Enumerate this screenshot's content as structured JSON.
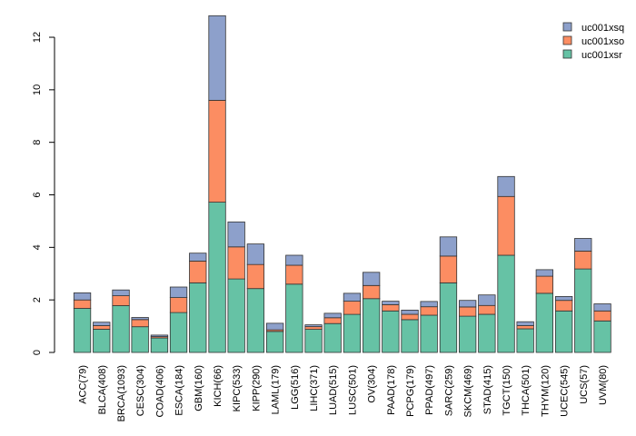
{
  "chart_data": {
    "type": "bar",
    "stacked": true,
    "title": "",
    "xlabel": "",
    "ylabel": "",
    "ylim": [
      0,
      12.9
    ],
    "yticks": [
      0,
      2,
      4,
      6,
      8,
      10,
      12
    ],
    "legend_position": "top-right",
    "categories": [
      "ACC(79)",
      "BLCA(408)",
      "BRCA(1093)",
      "CESC(304)",
      "COAD(406)",
      "ESCA(184)",
      "GBM(160)",
      "KICH(66)",
      "KIPC(533)",
      "KIPP(290)",
      "LAML(179)",
      "LGG(516)",
      "LIHC(371)",
      "LUAD(515)",
      "LUSC(501)",
      "OV(304)",
      "PAAD(178)",
      "PCPG(179)",
      "PPAD(497)",
      "SARC(259)",
      "SKCM(469)",
      "STAD(415)",
      "TGCT(150)",
      "THCA(501)",
      "THYM(120)",
      "UCEC(545)",
      "UCS(57)",
      "UVM(80)"
    ],
    "series": [
      {
        "name": "uc001xsr",
        "color": "#66c2a5",
        "values": [
          1.68,
          0.88,
          1.78,
          0.98,
          0.55,
          1.52,
          2.65,
          5.72,
          2.8,
          2.43,
          0.8,
          2.6,
          0.88,
          1.1,
          1.45,
          2.05,
          1.58,
          1.25,
          1.42,
          2.65,
          1.38,
          1.45,
          3.7,
          0.9,
          2.25,
          1.58,
          3.18,
          1.2
        ]
      },
      {
        "name": "uc001xso",
        "color": "#fc8d62",
        "values": [
          0.32,
          0.14,
          0.38,
          0.27,
          0.05,
          0.57,
          0.83,
          3.88,
          1.22,
          0.92,
          0.06,
          0.72,
          0.1,
          0.22,
          0.5,
          0.5,
          0.24,
          0.2,
          0.32,
          1.02,
          0.35,
          0.34,
          2.24,
          0.12,
          0.65,
          0.4,
          0.68,
          0.38
        ]
      },
      {
        "name": "uc001xsq",
        "color": "#8da0cb",
        "values": [
          0.27,
          0.13,
          0.22,
          0.08,
          0.06,
          0.4,
          0.3,
          3.22,
          0.95,
          0.78,
          0.25,
          0.38,
          0.07,
          0.17,
          0.3,
          0.5,
          0.13,
          0.16,
          0.2,
          0.73,
          0.25,
          0.4,
          0.76,
          0.15,
          0.25,
          0.15,
          0.48,
          0.27
        ]
      }
    ],
    "legend_order": [
      "uc001xsq",
      "uc001xso",
      "uc001xsr"
    ]
  }
}
